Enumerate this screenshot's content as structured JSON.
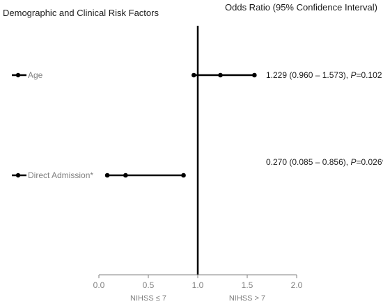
{
  "chart_data": {
    "type": "forest",
    "left_header": "Demographic and Clinical Risk Factors",
    "right_header": "Odds Ratio (95% Confidence Interval)",
    "xlim": [
      0,
      2
    ],
    "reference_line": 1.0,
    "x_ticks": [
      "0.0",
      "0.5",
      "1.0",
      "1.5",
      "2.0"
    ],
    "x_tick_values": [
      0,
      0.5,
      1.0,
      1.5,
      2.0
    ],
    "left_sublabel": "NIHSS ≤ 7",
    "right_sublabel": "NIHSS > 7",
    "rows": [
      {
        "label": "Age",
        "or": 1.229,
        "lo": 0.96,
        "hi": 1.573,
        "result_prefix": "1.229 (0.960 – 1.573), ",
        "p_symbol": "P",
        "p_value": "=0.102"
      },
      {
        "label": "Direct Admission*",
        "or": 0.27,
        "lo": 0.085,
        "hi": 0.856,
        "result_prefix": "0.270 (0.085 – 0.856), ",
        "p_symbol": "P",
        "p_value": "=0.026*"
      }
    ]
  }
}
